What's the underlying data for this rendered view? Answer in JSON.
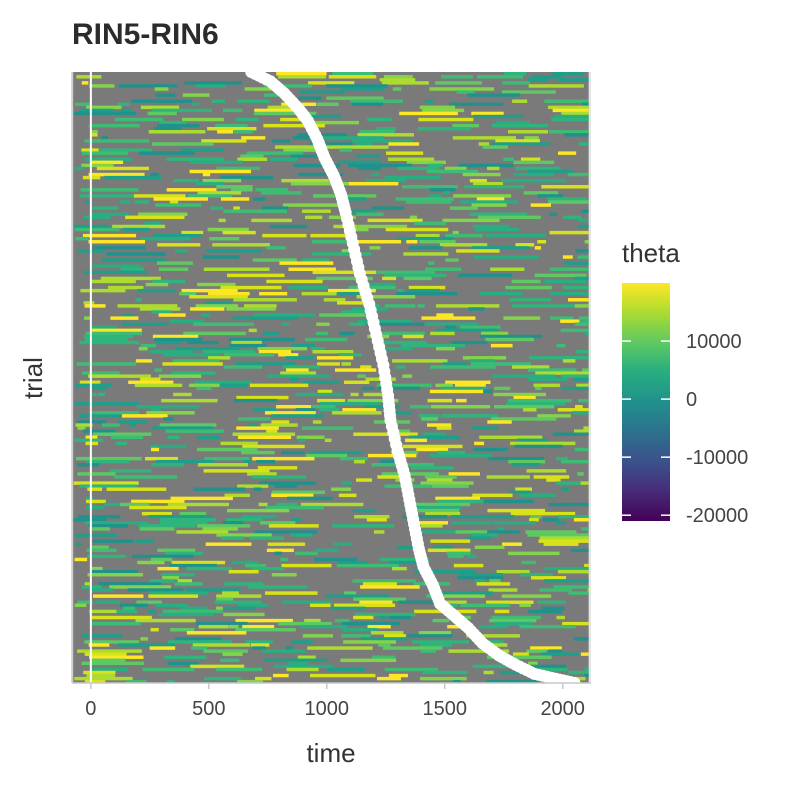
{
  "chart_data": {
    "type": "heatmap",
    "title": "RIN5-RIN6",
    "xlabel": "time",
    "ylabel": "trial",
    "xlim": [
      -80,
      2120
    ],
    "x_ticks": [
      0,
      500,
      1000,
      1500,
      2000
    ],
    "x_tick_labels": [
      "0",
      "500",
      "1000",
      "1500",
      "2000"
    ],
    "marker_line_x": 0,
    "y_ticks_shown": false,
    "colorscale": "viridis",
    "na_color": "#7a7a7a",
    "heatmap_extent_x": [
      -75,
      2110
    ],
    "legend": {
      "title": "theta",
      "position": "right",
      "range": [
        -21000,
        20000
      ],
      "ticks": [
        10000,
        0,
        -10000,
        -20000
      ],
      "tick_labels": [
        "10000",
        "0",
        "-10000",
        "-20000"
      ]
    },
    "overlay_series": {
      "name": "",
      "color": "#ffffff",
      "points": [
        {
          "x": 680,
          "y": 1.0
        },
        {
          "x": 760,
          "y": 0.985
        },
        {
          "x": 820,
          "y": 0.965
        },
        {
          "x": 880,
          "y": 0.94
        },
        {
          "x": 920,
          "y": 0.92
        },
        {
          "x": 960,
          "y": 0.89
        },
        {
          "x": 990,
          "y": 0.86
        },
        {
          "x": 1030,
          "y": 0.83
        },
        {
          "x": 1060,
          "y": 0.8
        },
        {
          "x": 1080,
          "y": 0.77
        },
        {
          "x": 1110,
          "y": 0.72
        },
        {
          "x": 1140,
          "y": 0.67
        },
        {
          "x": 1180,
          "y": 0.62
        },
        {
          "x": 1210,
          "y": 0.57
        },
        {
          "x": 1240,
          "y": 0.52
        },
        {
          "x": 1260,
          "y": 0.47
        },
        {
          "x": 1270,
          "y": 0.43
        },
        {
          "x": 1300,
          "y": 0.38
        },
        {
          "x": 1330,
          "y": 0.34
        },
        {
          "x": 1350,
          "y": 0.3
        },
        {
          "x": 1370,
          "y": 0.26
        },
        {
          "x": 1390,
          "y": 0.22
        },
        {
          "x": 1410,
          "y": 0.19
        },
        {
          "x": 1450,
          "y": 0.16
        },
        {
          "x": 1480,
          "y": 0.13
        },
        {
          "x": 1540,
          "y": 0.11
        },
        {
          "x": 1600,
          "y": 0.09
        },
        {
          "x": 1660,
          "y": 0.065
        },
        {
          "x": 1730,
          "y": 0.045
        },
        {
          "x": 1800,
          "y": 0.03
        },
        {
          "x": 1880,
          "y": 0.015
        },
        {
          "x": 1970,
          "y": 0.007
        },
        {
          "x": 2050,
          "y": 0.0
        }
      ]
    }
  }
}
